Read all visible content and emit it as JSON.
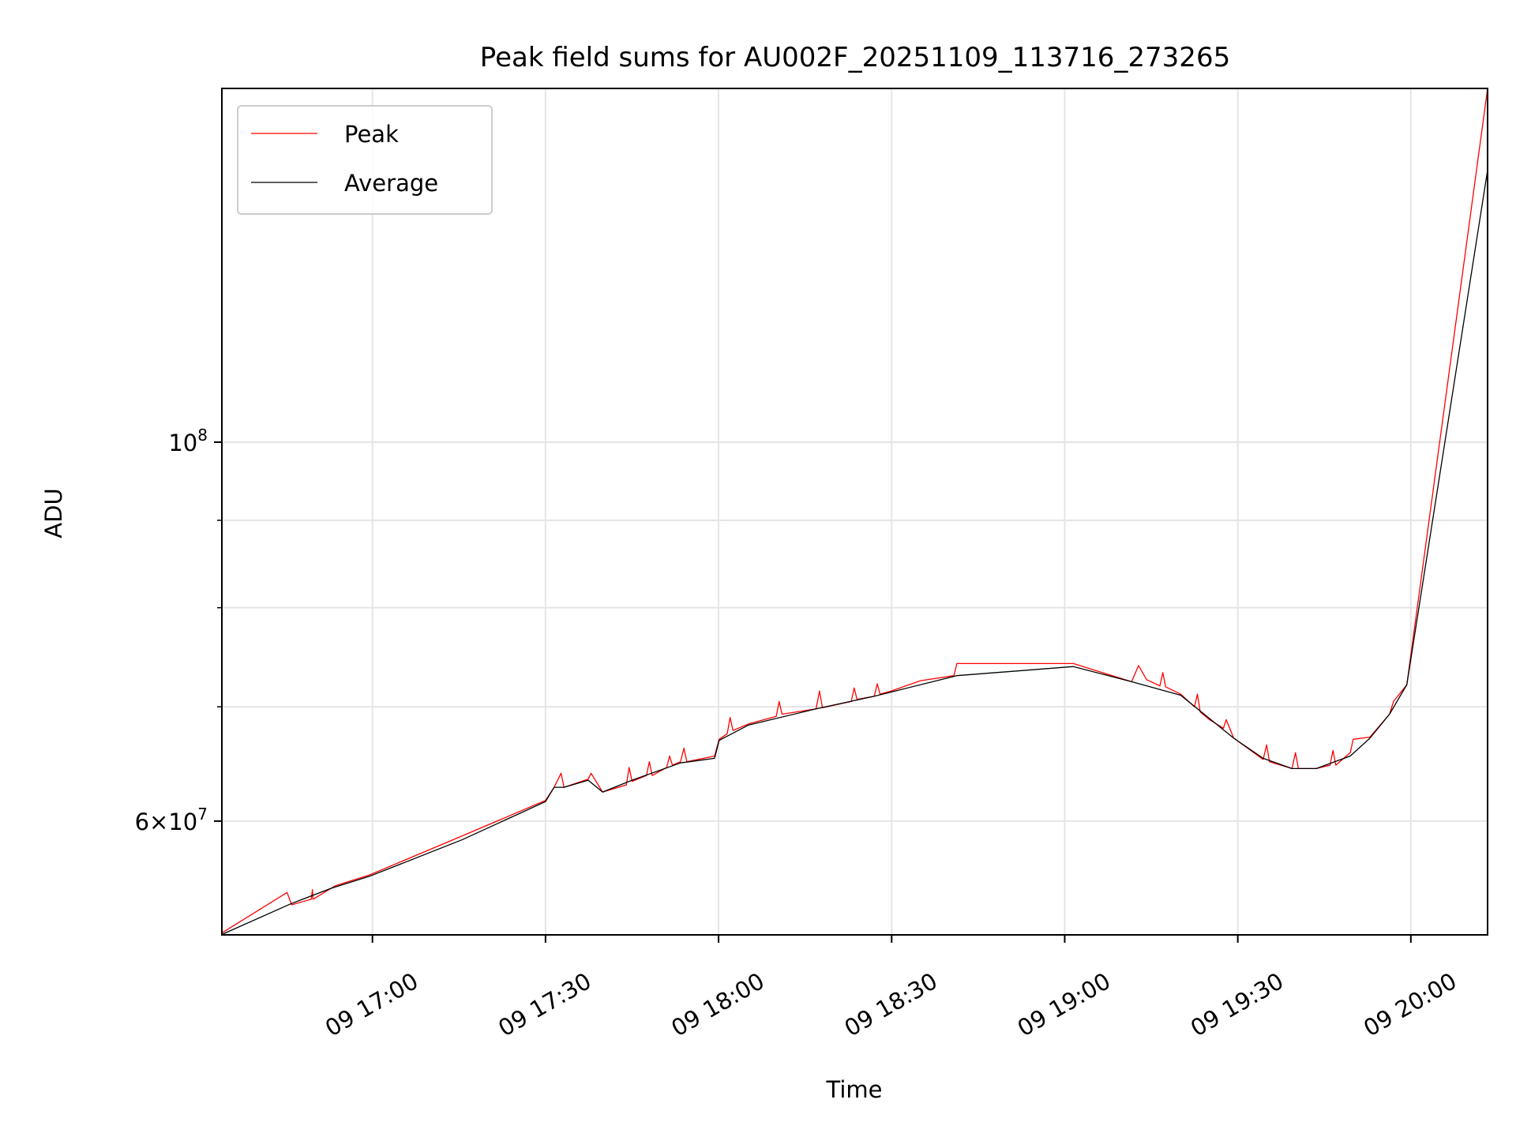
{
  "chart_data": {
    "type": "line",
    "title": "Peak field sums for AU002F_20251109_113716_273265",
    "xlabel": "Time",
    "ylabel": "ADU",
    "yscale": "log",
    "x_unit": "minutes after 09 16:00",
    "xlim": [
      33.9,
      253.3
    ],
    "ylim": [
      51470000.0,
      161100000.0
    ],
    "grid": true,
    "legend_position": "top-left",
    "x_ticks": [
      {
        "value": 60,
        "label": "09 17:00"
      },
      {
        "value": 90,
        "label": "09 17:30"
      },
      {
        "value": 120,
        "label": "09 18:00"
      },
      {
        "value": 150,
        "label": "09 18:30"
      },
      {
        "value": 180,
        "label": "09 19:00"
      },
      {
        "value": 210,
        "label": "09 19:30"
      },
      {
        "value": 240,
        "label": "09 20:00"
      }
    ],
    "y_major_ticks": [
      {
        "value": 100000000.0,
        "base": "10",
        "exp": "8",
        "mult": ""
      },
      {
        "value": 60000000.0,
        "base": "10",
        "exp": "7",
        "mult": "6×"
      }
    ],
    "y_minor_ticks": [
      70000000.0,
      80000000.0,
      90000000.0
    ],
    "series": [
      {
        "name": "Peak",
        "color": "#ff0000",
        "points": [
          [
            33.9,
            51600000.0
          ],
          [
            45.2,
            54500000.0
          ],
          [
            46.0,
            53600000.0
          ],
          [
            49.4,
            54000000.0
          ],
          [
            49.6,
            54700000.0
          ],
          [
            49.7,
            54000000.0
          ],
          [
            53.6,
            55000000.0
          ],
          [
            59.5,
            55800000.0
          ],
          [
            75.5,
            58800000.0
          ],
          [
            90.0,
            61700000.0
          ],
          [
            91.5,
            62800000.0
          ],
          [
            92.7,
            64000000.0
          ],
          [
            93.2,
            62800000.0
          ],
          [
            97.4,
            63500000.0
          ],
          [
            97.9,
            64000000.0
          ],
          [
            99.9,
            62400000.0
          ],
          [
            104.0,
            63000000.0
          ],
          [
            104.5,
            64500000.0
          ],
          [
            105.0,
            63300000.0
          ],
          [
            107.5,
            63800000.0
          ],
          [
            108.0,
            65000000.0
          ],
          [
            108.5,
            63800000.0
          ],
          [
            111.0,
            64500000.0
          ],
          [
            111.5,
            65500000.0
          ],
          [
            112.0,
            64700000.0
          ],
          [
            113.4,
            65000000.0
          ],
          [
            114.0,
            66200000.0
          ],
          [
            114.5,
            65000000.0
          ],
          [
            119.3,
            65500000.0
          ],
          [
            120.1,
            67000000.0
          ],
          [
            121.5,
            67500000.0
          ],
          [
            122.0,
            69000000.0
          ],
          [
            122.5,
            67800000.0
          ],
          [
            125.2,
            68400000.0
          ],
          [
            130.0,
            69100000.0
          ],
          [
            130.5,
            70500000.0
          ],
          [
            131.0,
            69300000.0
          ],
          [
            136.9,
            69800000.0
          ],
          [
            137.5,
            71500000.0
          ],
          [
            138.0,
            69900000.0
          ],
          [
            143.0,
            70500000.0
          ],
          [
            143.5,
            71800000.0
          ],
          [
            144.0,
            70700000.0
          ],
          [
            147.0,
            71000000.0
          ],
          [
            147.5,
            72200000.0
          ],
          [
            148.0,
            71200000.0
          ],
          [
            149.9,
            71500000.0
          ],
          [
            155.0,
            72500000.0
          ],
          [
            160.8,
            73000000.0
          ],
          [
            161.3,
            74200000.0
          ],
          [
            181.5,
            74200000.0
          ],
          [
            191.6,
            72400000.0
          ],
          [
            192.8,
            74000000.0
          ],
          [
            194.2,
            72600000.0
          ],
          [
            196.5,
            72000000.0
          ],
          [
            197.0,
            73300000.0
          ],
          [
            197.5,
            71900000.0
          ],
          [
            200.1,
            71200000.0
          ],
          [
            202.5,
            70000000.0
          ],
          [
            203.0,
            71200000.0
          ],
          [
            203.5,
            69500000.0
          ],
          [
            205.1,
            68800000.0
          ],
          [
            207.5,
            68000000.0
          ],
          [
            208.0,
            68800000.0
          ],
          [
            209.3,
            67100000.0
          ],
          [
            214.4,
            65200000.0
          ],
          [
            215.0,
            66500000.0
          ],
          [
            215.5,
            65000000.0
          ],
          [
            219.4,
            64400000.0
          ],
          [
            220.0,
            65800000.0
          ],
          [
            220.5,
            64400000.0
          ],
          [
            223.6,
            64400000.0
          ],
          [
            226.0,
            64700000.0
          ],
          [
            226.5,
            66000000.0
          ],
          [
            227.0,
            64700000.0
          ],
          [
            229.5,
            65800000.0
          ],
          [
            230.0,
            67000000.0
          ],
          [
            232.9,
            67200000.0
          ],
          [
            236.3,
            69300000.0
          ],
          [
            237.0,
            70500000.0
          ],
          [
            239.3,
            72100000.0
          ],
          [
            253.3,
            161100000.0
          ]
        ]
      },
      {
        "name": "Average",
        "color": "#000000",
        "points": [
          [
            33.9,
            51500000.0
          ],
          [
            46.0,
            53700000.0
          ],
          [
            52.8,
            54800000.0
          ],
          [
            59.5,
            55700000.0
          ],
          [
            75.5,
            58500000.0
          ],
          [
            90.0,
            61600000.0
          ],
          [
            91.5,
            62800000.0
          ],
          [
            93.2,
            62800000.0
          ],
          [
            97.4,
            63400000.0
          ],
          [
            99.9,
            62400000.0
          ],
          [
            105.0,
            63400000.0
          ],
          [
            113.4,
            64900000.0
          ],
          [
            119.3,
            65300000.0
          ],
          [
            120.1,
            66900000.0
          ],
          [
            125.2,
            68300000.0
          ],
          [
            136.9,
            69800000.0
          ],
          [
            147.0,
            71000000.0
          ],
          [
            149.9,
            71400000.0
          ],
          [
            161.3,
            73000000.0
          ],
          [
            181.5,
            73900000.0
          ],
          [
            191.6,
            72400000.0
          ],
          [
            200.1,
            71100000.0
          ],
          [
            205.1,
            68900000.0
          ],
          [
            209.3,
            67100000.0
          ],
          [
            214.4,
            65300000.0
          ],
          [
            219.4,
            64400000.0
          ],
          [
            223.6,
            64400000.0
          ],
          [
            229.5,
            65500000.0
          ],
          [
            232.9,
            67100000.0
          ],
          [
            236.3,
            69300000.0
          ],
          [
            239.3,
            72100000.0
          ],
          [
            253.3,
            144300000.0
          ]
        ]
      }
    ]
  }
}
